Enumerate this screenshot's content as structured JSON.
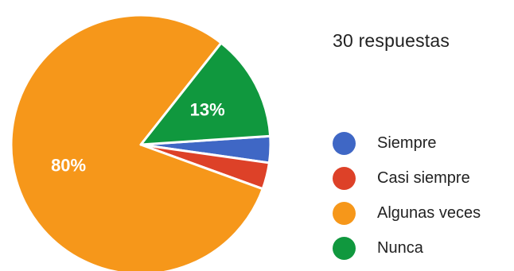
{
  "header": {
    "responses": "30 respuestas"
  },
  "chart_data": {
    "type": "pie",
    "categories": [
      "Siempre",
      "Casi siempre",
      "Algunas veces",
      "Nunca"
    ],
    "values": [
      3.3,
      3.3,
      80,
      13.3
    ],
    "data_labels": [
      "",
      "",
      "80%",
      "13%"
    ],
    "colors": [
      "#3f67c5",
      "#dd4128",
      "#f6971a",
      "#10983e"
    ],
    "legend": "right"
  }
}
